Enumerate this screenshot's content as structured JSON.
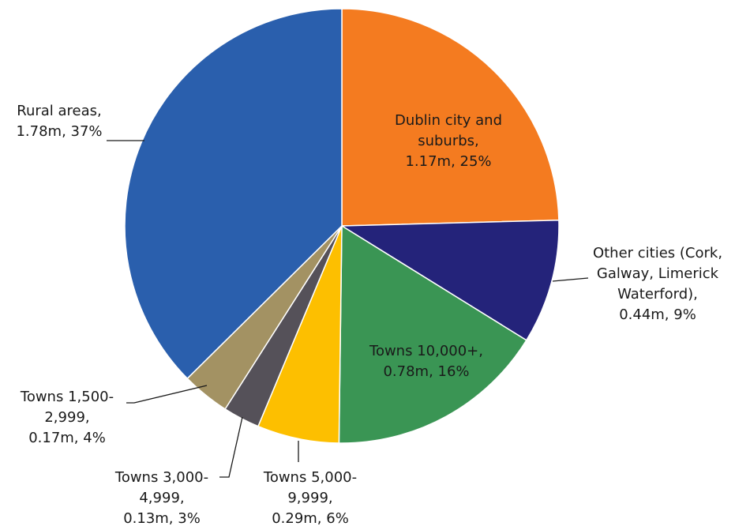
{
  "chart_data": {
    "type": "pie",
    "categories": [
      "Dublin city and suburbs,",
      "Other cities (Cork, Galway, Limerick Waterford),",
      "Towns 10,000+,",
      "Towns 5,000-9,999,",
      "Towns 3,000-4,999,",
      "Towns 1,500-2,999,",
      "Rural areas,"
    ],
    "values": [
      1.17,
      0.44,
      0.78,
      0.29,
      0.13,
      0.17,
      1.78
    ],
    "value_labels": [
      "1.17m, 25%",
      "0.44m, 9%",
      "0.78m, 16%",
      "0.29m, 6%",
      "0.13m, 3%",
      "0.17m, 4%",
      "1.78m, 37%"
    ],
    "colors": [
      "#f47b20",
      "#24237a",
      "#3a9554",
      "#fdbf00",
      "#555159",
      "#a39263",
      "#2a5fad"
    ]
  }
}
